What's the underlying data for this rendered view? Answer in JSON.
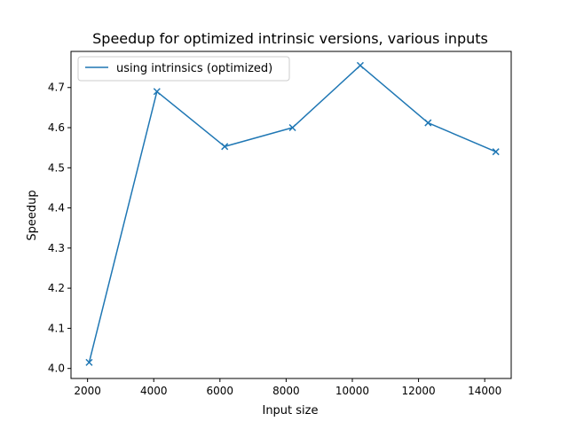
{
  "chart_data": {
    "type": "line",
    "title": "Speedup for optimized intrinsic versions, various inputs",
    "xlabel": "Input size",
    "ylabel": "Speedup",
    "xlim": [
      1500,
      14800
    ],
    "ylim": [
      3.975,
      4.79
    ],
    "xticks": [
      2000,
      4000,
      6000,
      8000,
      10000,
      12000,
      14000
    ],
    "yticks": [
      4.0,
      4.1,
      4.2,
      4.3,
      4.4,
      4.5,
      4.6,
      4.7
    ],
    "grid": false,
    "legend_position": "upper-left",
    "marker": "x",
    "series": [
      {
        "name": "using intrinsics (optimized)",
        "color": "#1f77b4",
        "x": [
          2048,
          4096,
          6144,
          8192,
          10240,
          12288,
          14336
        ],
        "y": [
          4.015,
          4.69,
          4.553,
          4.6,
          4.755,
          4.612,
          4.54
        ]
      }
    ]
  }
}
